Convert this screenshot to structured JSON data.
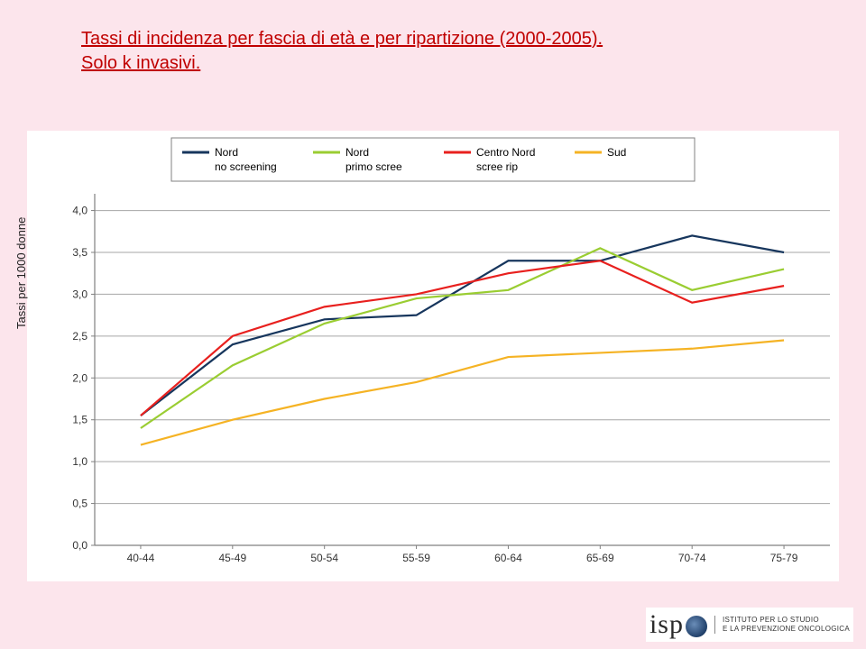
{
  "title_line1": "Tassi di incidenza per fascia di età e per ripartizione (2000-2005).",
  "title_line2": "Solo k invasivi.",
  "ylabel": "Tassi per 1000 donne",
  "chart": {
    "type": "line",
    "categories": [
      "40-44",
      "45-49",
      "50-54",
      "55-59",
      "60-64",
      "65-69",
      "70-74",
      "75-79"
    ],
    "ylim": [
      0.0,
      4.2
    ],
    "ytick_step": 0.5,
    "ytick_labels": [
      "0,0",
      "0,5",
      "1,0",
      "1,5",
      "2,0",
      "2,5",
      "3,0",
      "3,5",
      "4,0"
    ],
    "grid_color": "#a6a6a6",
    "axis_color": "#808080",
    "background_color": "#ffffff",
    "tick_fontsize": 12,
    "line_width": 2.2,
    "label_fontsize": 12,
    "legend": {
      "border_color": "#808080",
      "items": [
        {
          "label_top": "Nord",
          "label_bot": "no screening",
          "color": "#17365d"
        },
        {
          "label_top": "Nord",
          "label_bot": "primo scree",
          "color": "#9acd32"
        },
        {
          "label_top": "Centro Nord",
          "label_bot": "scree rip",
          "color": "#e8201e"
        },
        {
          "label_top": "Sud",
          "label_bot": "",
          "color": "#f5b324"
        }
      ]
    },
    "series": [
      {
        "name": "nord_no_screening",
        "color": "#17365d",
        "values": [
          1.55,
          2.4,
          2.7,
          2.75,
          3.4,
          3.4,
          3.7,
          3.5
        ]
      },
      {
        "name": "nord_primo_scree",
        "color": "#9acd32",
        "values": [
          1.4,
          2.15,
          2.65,
          2.95,
          3.05,
          3.55,
          3.05,
          3.3
        ]
      },
      {
        "name": "centro_nord_scree_rip",
        "color": "#e8201e",
        "values": [
          1.55,
          2.5,
          2.85,
          3.0,
          3.25,
          3.4,
          2.9,
          3.1
        ]
      },
      {
        "name": "sud",
        "color": "#f5b324",
        "values": [
          1.2,
          1.5,
          1.75,
          1.95,
          2.25,
          2.3,
          2.35,
          2.45
        ]
      }
    ]
  },
  "brand": {
    "name": "isp",
    "sub1": "ISTITUTO PER LO STUDIO",
    "sub2": "E LA PREVENZIONE ONCOLOGICA"
  }
}
